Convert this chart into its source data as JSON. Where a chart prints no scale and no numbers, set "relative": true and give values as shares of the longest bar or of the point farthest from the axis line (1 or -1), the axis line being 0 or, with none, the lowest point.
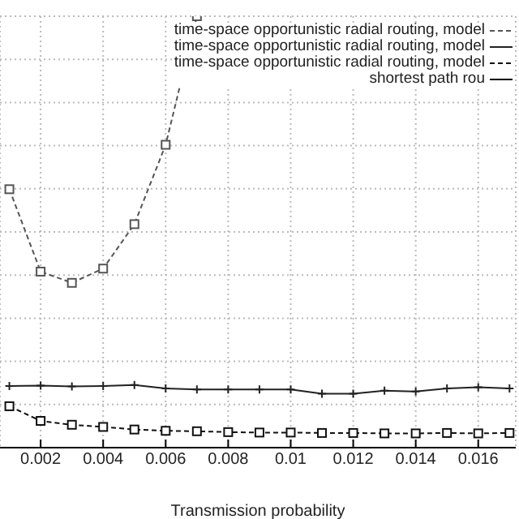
{
  "chart_data": {
    "type": "line",
    "xlabel": "Transmission probability",
    "relative": true,
    "x": [
      0.001,
      0.002,
      0.003,
      0.004,
      0.005,
      0.006,
      0.007,
      0.008,
      0.009,
      0.01,
      0.011,
      0.012,
      0.013,
      0.014,
      0.015,
      0.016,
      0.017
    ],
    "xlim": [
      0.0007,
      0.0172
    ],
    "xticks": [
      0.002,
      0.004,
      0.006,
      0.008,
      0.01,
      0.012,
      0.014,
      0.016
    ],
    "tick_labels": "x",
    "grid": true,
    "legend": "top right",
    "series": [
      {
        "name": "time-space opportunistic radial routing, model",
        "color": "#555555",
        "line_style": "dashed",
        "marker": "square",
        "values": [
          0.599,
          0.408,
          0.382,
          0.415,
          0.518,
          0.702,
          1,
          null,
          null,
          null,
          null,
          null,
          null,
          null,
          null,
          null,
          null
        ]
      },
      {
        "name": "time-space opportunistic radial routing, model",
        "color": "#222222",
        "line_style": "solid",
        "marker": "cross",
        "values": [
          0.143,
          0.144,
          0.142,
          0.143,
          0.145,
          0.137,
          0.135,
          0.135,
          0.135,
          0.135,
          0.125,
          0.125,
          0.132,
          0.13,
          0.137,
          0.14,
          0.137
        ]
      },
      {
        "name": "time-space opportunistic radial routing, model",
        "color": "#111111",
        "line_style": "dashed",
        "marker": "square",
        "values": [
          0.096,
          0.062,
          0.053,
          0.048,
          0.042,
          0.039,
          0.038,
          0.036,
          0.035,
          0.035,
          0.034,
          0.034,
          0.033,
          0.033,
          0.034,
          0.033,
          0.034
        ]
      },
      {
        "name": "shortest path rou",
        "color": "#000000",
        "line_style": "solid",
        "marker": "cross",
        "values": [
          null,
          null,
          null,
          null,
          null,
          null,
          null,
          null,
          null,
          null,
          null,
          null,
          null,
          null,
          null,
          null,
          null
        ]
      }
    ]
  }
}
